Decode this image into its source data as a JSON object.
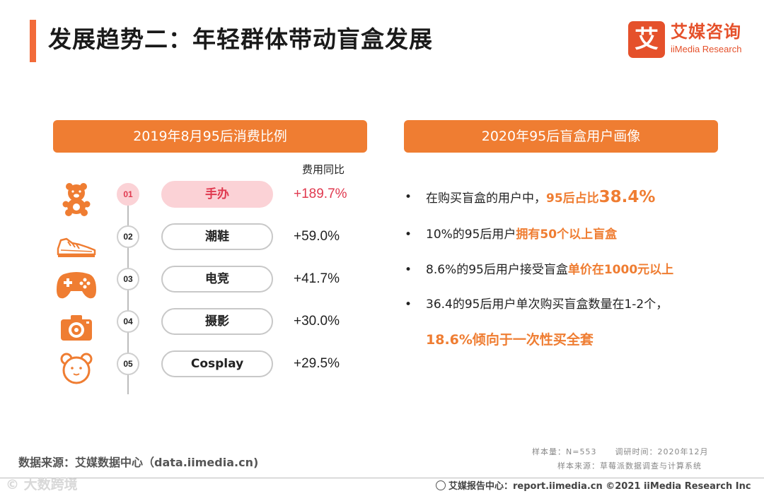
{
  "title": "发展趋势二：年轻群体带动盲盒发展",
  "logo": {
    "mark": "艾",
    "cn": "艾媒咨询",
    "en": "iiMedia Research"
  },
  "left_section": {
    "header": "2019年8月95后消费比例",
    "column_label": "费用同比",
    "items": [
      {
        "rank": "01",
        "name": "手办",
        "growth": "+189.7%",
        "icon": "teddy-bear-icon"
      },
      {
        "rank": "02",
        "name": "潮鞋",
        "growth": "+59.0%",
        "icon": "sneaker-icon"
      },
      {
        "rank": "03",
        "name": "电竞",
        "growth": "+41.7%",
        "icon": "gamepad-icon"
      },
      {
        "rank": "04",
        "name": "摄影",
        "growth": "+30.0%",
        "icon": "camera-icon"
      },
      {
        "rank": "05",
        "name": "Cosplay",
        "growth": "+29.5%",
        "icon": "bear-head-icon"
      }
    ]
  },
  "right_section": {
    "header": "2020年95后盲盒用户画像",
    "bullet_symbol": "•",
    "bullets": [
      {
        "plain": "在购买盲盒的用户中，",
        "highlight": "95后占比",
        "highlight_big": "38.4%"
      },
      {
        "plain": "10%的95后用户",
        "highlight": "拥有50个以上盲盒"
      },
      {
        "plain": "8.6%的95后用户接受盲盒",
        "highlight": "单价在1000元以上"
      },
      {
        "plain": "36.4的95后用户单次购买盲盒数量在1-2个，",
        "continuation": "18.6%倾向于一次性买全套"
      }
    ]
  },
  "footer": {
    "source": "数据来源：艾媒数据中心（data.iimedia.cn)",
    "sample_size": "样本量：N=553",
    "survey_time": "调研时间：2020年12月",
    "sample_source": "样本来源：草莓派数据调查与计算系统",
    "report_center": "艾媒报告中心：report.iimedia.cn ©2021 iiMedia Research Inc",
    "watermark": "© 大数跨境"
  },
  "colors": {
    "accent": "#ef7d32",
    "highlight_red": "#e0394f",
    "highlight_pink": "#fbd2d6",
    "logo_red": "#e5512b"
  }
}
